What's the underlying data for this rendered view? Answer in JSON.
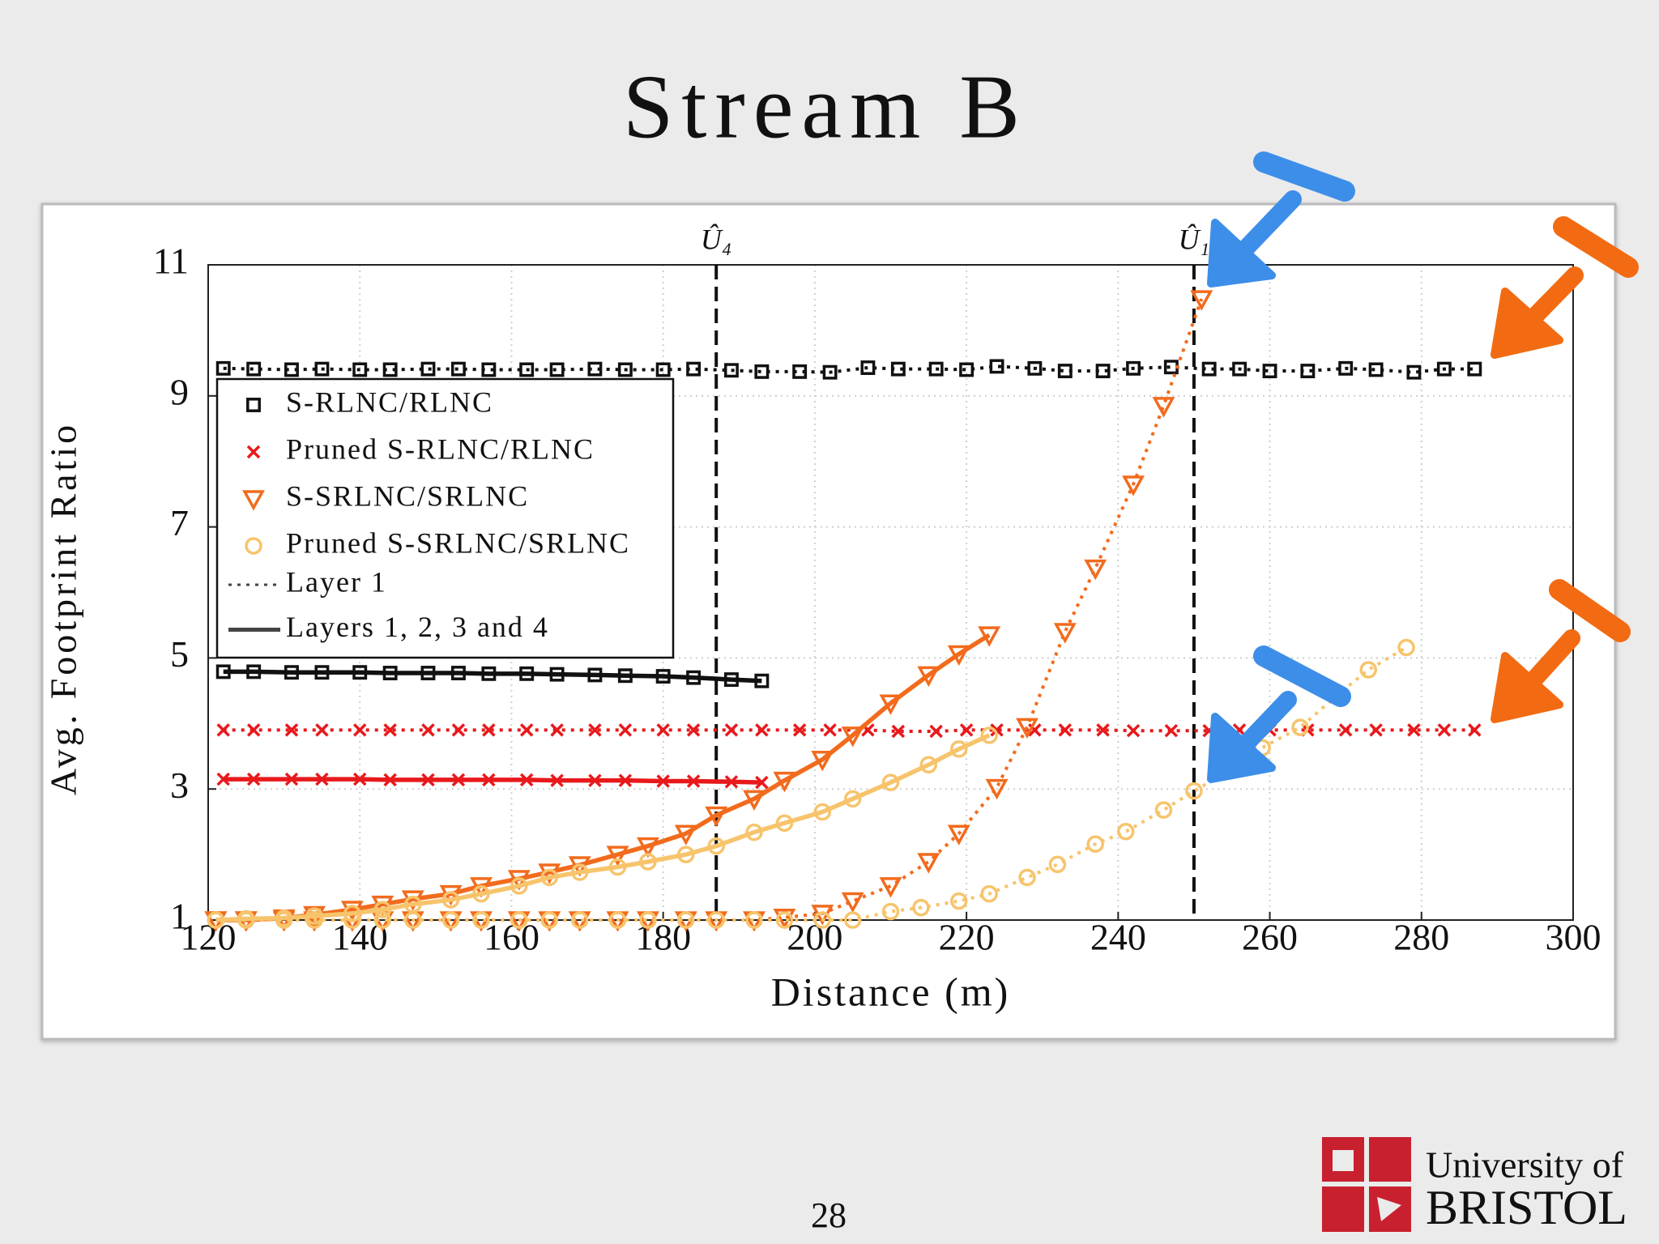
{
  "slide": {
    "title": "Stream B",
    "page_number": "28",
    "logo": {
      "line1": "University of",
      "line2": "BRISTOL"
    }
  },
  "chart_data": {
    "type": "line",
    "xlabel": "Distance (m)",
    "ylabel": "Avg. Footprint Ratio",
    "xlim": [
      120,
      300
    ],
    "ylim": [
      1,
      11
    ],
    "xticks": [
      120,
      140,
      160,
      180,
      200,
      220,
      240,
      260,
      280,
      300
    ],
    "yticks": [
      1,
      3,
      5,
      7,
      9,
      11
    ],
    "grid": true,
    "vlines": [
      {
        "x": 187,
        "label": "Û₄"
      },
      {
        "x": 250,
        "label": "Û₁"
      }
    ],
    "legend": [
      {
        "name": "S-RLNC/RLNC",
        "marker": "square",
        "color": "#111111"
      },
      {
        "name": "Pruned S-RLNC/RLNC",
        "marker": "cross",
        "color": "#e8191c"
      },
      {
        "name": "S-SRLNC/SRLNC",
        "marker": "triangle",
        "color": "#f26b1d"
      },
      {
        "name": "Pruned S-SRLNC/SRLNC",
        "marker": "circle",
        "color": "#f7c46c"
      },
      {
        "name": "Layer 1",
        "line": "dotted",
        "color": "#444444"
      },
      {
        "name": "Layers 1, 2, 3 and 4",
        "line": "solid",
        "color": "#444444"
      }
    ],
    "series": [
      {
        "marker": "square",
        "color": "#111111",
        "line": "dotted",
        "x": [
          122,
          126,
          131,
          135,
          140,
          144,
          149,
          153,
          157,
          162,
          166,
          171,
          175,
          180,
          184,
          189,
          193,
          198,
          202,
          207,
          211,
          216,
          220,
          224,
          229,
          233,
          238,
          242,
          247,
          252,
          256,
          260,
          265,
          270,
          274,
          279,
          283,
          287
        ],
        "values": [
          9.42,
          9.41,
          9.4,
          9.41,
          9.4,
          9.4,
          9.41,
          9.41,
          9.4,
          9.4,
          9.4,
          9.41,
          9.4,
          9.4,
          9.41,
          9.39,
          9.37,
          9.37,
          9.36,
          9.43,
          9.41,
          9.41,
          9.4,
          9.45,
          9.42,
          9.38,
          9.38,
          9.42,
          9.44,
          9.41,
          9.41,
          9.38,
          9.38,
          9.42,
          9.4,
          9.36,
          9.41,
          9.41
        ]
      },
      {
        "marker": "cross",
        "color": "#e8191c",
        "line": "dotted",
        "x": [
          122,
          126,
          131,
          135,
          140,
          144,
          149,
          153,
          157,
          162,
          166,
          171,
          175,
          180,
          184,
          189,
          193,
          198,
          202,
          207,
          211,
          216,
          220,
          224,
          229,
          233,
          238,
          242,
          247,
          252,
          256,
          260,
          265,
          270,
          274,
          279,
          283,
          287
        ],
        "values": [
          3.9,
          3.9,
          3.9,
          3.9,
          3.9,
          3.9,
          3.9,
          3.9,
          3.9,
          3.9,
          3.9,
          3.9,
          3.9,
          3.9,
          3.9,
          3.9,
          3.9,
          3.9,
          3.9,
          3.9,
          3.88,
          3.88,
          3.9,
          3.9,
          3.9,
          3.9,
          3.9,
          3.89,
          3.89,
          3.89,
          3.9,
          3.9,
          3.9,
          3.9,
          3.9,
          3.9,
          3.9,
          3.9
        ]
      },
      {
        "marker": "square",
        "color": "#111111",
        "line": "solid",
        "x": [
          122,
          126,
          131,
          135,
          140,
          144,
          149,
          153,
          157,
          162,
          166,
          171,
          175,
          180,
          184,
          189,
          193
        ],
        "values": [
          4.79,
          4.79,
          4.78,
          4.78,
          4.78,
          4.77,
          4.77,
          4.77,
          4.76,
          4.76,
          4.75,
          4.74,
          4.73,
          4.72,
          4.7,
          4.67,
          4.65
        ]
      },
      {
        "marker": "cross",
        "color": "#e8191c",
        "line": "solid",
        "x": [
          122,
          126,
          131,
          135,
          140,
          144,
          149,
          153,
          157,
          162,
          166,
          171,
          175,
          180,
          184,
          189,
          193
        ],
        "values": [
          3.15,
          3.15,
          3.15,
          3.15,
          3.15,
          3.14,
          3.14,
          3.14,
          3.14,
          3.14,
          3.13,
          3.13,
          3.13,
          3.12,
          3.12,
          3.11,
          3.1
        ]
      },
      {
        "marker": "triangle",
        "color": "#f26b1d",
        "line": "dotted",
        "x": [
          121,
          125,
          130,
          134,
          139,
          143,
          147,
          152,
          156,
          161,
          165,
          169,
          174,
          178,
          183,
          187,
          192,
          196,
          201,
          205,
          210,
          215,
          219,
          224,
          228,
          233,
          237,
          242,
          246,
          251
        ],
        "values": [
          1,
          1,
          1,
          1,
          1,
          1,
          1,
          1,
          1,
          1,
          1,
          1,
          1,
          1,
          1,
          1,
          1,
          1.04,
          1.1,
          1.29,
          1.52,
          1.89,
          2.32,
          3.02,
          3.95,
          5.4,
          6.37,
          7.65,
          8.85,
          10.48
        ]
      },
      {
        "marker": "triangle",
        "color": "#f26b1d",
        "line": "solid",
        "x": [
          121,
          125,
          130,
          134,
          139,
          143,
          147,
          152,
          156,
          161,
          165,
          169,
          174,
          178,
          183,
          187,
          192,
          196,
          201,
          205,
          210,
          215,
          219,
          223
        ],
        "values": [
          1,
          1,
          1.03,
          1.08,
          1.16,
          1.24,
          1.32,
          1.4,
          1.52,
          1.63,
          1.73,
          1.84,
          2,
          2.13,
          2.32,
          2.6,
          2.85,
          3.13,
          3.45,
          3.82,
          4.31,
          4.74,
          5.06,
          5.35
        ]
      },
      {
        "marker": "circle",
        "color": "#f7c46c",
        "line": "solid",
        "x": [
          121,
          125,
          130,
          134,
          139,
          143,
          147,
          152,
          156,
          161,
          165,
          169,
          174,
          178,
          183,
          187,
          192,
          196,
          201,
          205,
          210,
          215,
          219,
          223
        ],
        "values": [
          1,
          1.02,
          1.03,
          1.06,
          1.1,
          1.16,
          1.24,
          1.31,
          1.4,
          1.52,
          1.65,
          1.73,
          1.81,
          1.89,
          2,
          2.13,
          2.34,
          2.48,
          2.65,
          2.85,
          3.1,
          3.37,
          3.61,
          3.82
        ]
      },
      {
        "marker": "circle",
        "color": "#f7c46c",
        "line": "dotted",
        "x": [
          121,
          125,
          130,
          134,
          139,
          143,
          147,
          152,
          156,
          161,
          165,
          169,
          174,
          178,
          183,
          187,
          192,
          196,
          201,
          205,
          210,
          214,
          219,
          223,
          228,
          232,
          237,
          241,
          246,
          250,
          255,
          259,
          264,
          269,
          273,
          278
        ],
        "values": [
          1,
          1,
          1,
          1,
          1,
          1,
          1,
          1,
          1,
          1,
          1,
          1,
          1,
          1,
          1,
          1,
          1,
          1,
          1,
          1,
          1.13,
          1.19,
          1.29,
          1.4,
          1.65,
          1.85,
          2.16,
          2.35,
          2.68,
          2.97,
          3.3,
          3.63,
          3.94,
          4.44,
          4.82,
          5.16
        ]
      }
    ]
  }
}
